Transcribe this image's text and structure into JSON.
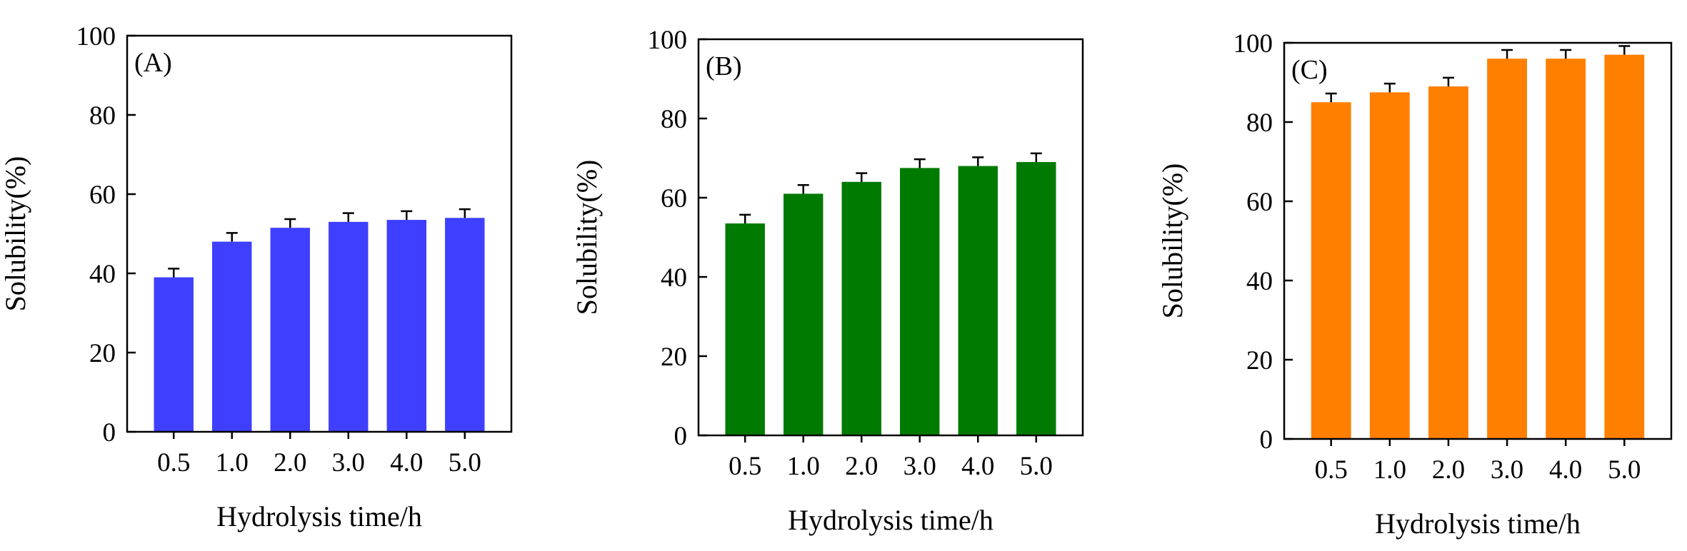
{
  "chart_data": [
    {
      "type": "bar",
      "panel_label": "(A)",
      "categories": [
        "0.5",
        "1.0",
        "2.0",
        "3.0",
        "4.0",
        "5.0"
      ],
      "values": [
        39,
        48,
        51.5,
        53,
        53.5,
        54
      ],
      "errors": [
        2.2,
        2.2,
        2.2,
        2.2,
        2.2,
        2.2
      ],
      "color": "#3f3fff",
      "xlabel": "Hydrolysis time/h",
      "ylabel": "Solubility(%)",
      "ylim": [
        0,
        100
      ],
      "yticks": [
        "0",
        "20",
        "40",
        "60",
        "80",
        "100"
      ],
      "grid": false
    },
    {
      "type": "bar",
      "panel_label": "(B)",
      "categories": [
        "0.5",
        "1.0",
        "2.0",
        "3.0",
        "4.0",
        "5.0"
      ],
      "values": [
        53.5,
        61,
        64,
        67.5,
        68,
        69
      ],
      "errors": [
        2.2,
        2.2,
        2.2,
        2.2,
        2.2,
        2.2
      ],
      "color": "#007a00",
      "xlabel": "Hydrolysis time/h",
      "ylabel": "Solubility(%)",
      "ylim": [
        0,
        100
      ],
      "yticks": [
        "0",
        "20",
        "40",
        "60",
        "80",
        "100"
      ],
      "grid": false
    },
    {
      "type": "bar",
      "panel_label": "(C)",
      "categories": [
        "0.5",
        "1.0",
        "2.0",
        "3.0",
        "4.0",
        "5.0"
      ],
      "values": [
        85,
        87.5,
        89,
        96,
        96,
        97
      ],
      "errors": [
        2.2,
        2.2,
        2.2,
        2.2,
        2.2,
        2.2
      ],
      "color": "#ff7f00",
      "xlabel": "Hydrolysis time/h",
      "ylabel": "Solubility(%)",
      "ylim": [
        0,
        100
      ],
      "yticks": [
        "0",
        "20",
        "40",
        "60",
        "80",
        "100"
      ],
      "grid": false
    }
  ]
}
